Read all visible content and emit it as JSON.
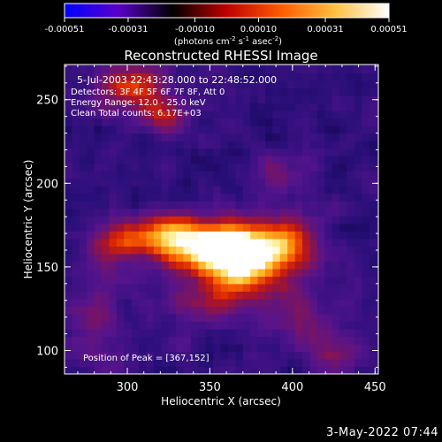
{
  "colorbar": {
    "ticks": [
      "-0.00051",
      "-0.00031",
      "-0.00010",
      "0.00010",
      "0.00031",
      "0.00051"
    ],
    "tick_values": [
      -0.00051,
      -0.00031,
      -0.0001,
      0.0001,
      0.00031,
      0.00051
    ],
    "range": [
      -0.00051,
      0.00051
    ],
    "units_main": "(photons cm",
    "units_sup1": "-2",
    "units_mid1": " s",
    "units_sup2": "-1",
    "units_mid2": " asec",
    "units_sup3": "-2",
    "units_end": ")",
    "colors": [
      "#0000ff",
      "#5a00c8",
      "#000000",
      "#c00000",
      "#ff5a00",
      "#ffc040",
      "#ffffff"
    ]
  },
  "chart_data": {
    "type": "heatmap",
    "title": "Reconstructed RHESSI Image",
    "xlabel": "Heliocentric X (arcsec)",
    "ylabel": "Heliocentric Y (arcsec)",
    "xlim": [
      262,
      452
    ],
    "ylim": [
      86,
      271
    ],
    "x_ticks": [
      300,
      350,
      400,
      450
    ],
    "y_ticks": [
      100,
      150,
      200,
      250
    ],
    "x_tick_labels": [
      "300",
      "350",
      "400",
      "450"
    ],
    "y_tick_labels": [
      "100",
      "150",
      "200",
      "250"
    ],
    "peak": [
      367,
      152
    ],
    "info_lines": [
      "5-Jul-2003 22:43:28.000 to 22:48:52.000",
      "Detectors: 3F 4F 5F 6F 7F 8F, Att 0",
      "Energy Range: 12.0 - 25.0 keV",
      "Clean    Total counts: 6.17E+03"
    ],
    "peak_text": "Position of Peak = [367,152]",
    "colors": {
      "low": "#1a0a6e",
      "mid": "#6a1a9a",
      "high": "#ff8a20",
      "peak": "#ffffff"
    },
    "sources": [
      {
        "x": 367,
        "y": 152,
        "amp": 1.0,
        "sx": 18,
        "sy": 14
      },
      {
        "x": 345,
        "y": 160,
        "amp": 0.75,
        "sx": 22,
        "sy": 10
      },
      {
        "x": 318,
        "y": 168,
        "amp": 0.55,
        "sx": 18,
        "sy": 8
      },
      {
        "x": 290,
        "y": 158,
        "amp": 0.35,
        "sx": 12,
        "sy": 10
      },
      {
        "x": 395,
        "y": 162,
        "amp": 0.45,
        "sx": 14,
        "sy": 12
      },
      {
        "x": 300,
        "y": 255,
        "amp": 0.55,
        "sx": 14,
        "sy": 10
      },
      {
        "x": 322,
        "y": 238,
        "amp": 0.35,
        "sx": 10,
        "sy": 8
      },
      {
        "x": 345,
        "y": 128,
        "amp": 0.3,
        "sx": 16,
        "sy": 10
      },
      {
        "x": 405,
        "y": 120,
        "amp": 0.3,
        "sx": 14,
        "sy": 12
      },
      {
        "x": 280,
        "y": 115,
        "amp": 0.25,
        "sx": 12,
        "sy": 16
      },
      {
        "x": 425,
        "y": 95,
        "amp": 0.3,
        "sx": 10,
        "sy": 8
      },
      {
        "x": 390,
        "y": 205,
        "amp": 0.25,
        "sx": 10,
        "sy": 10
      }
    ]
  }
}
